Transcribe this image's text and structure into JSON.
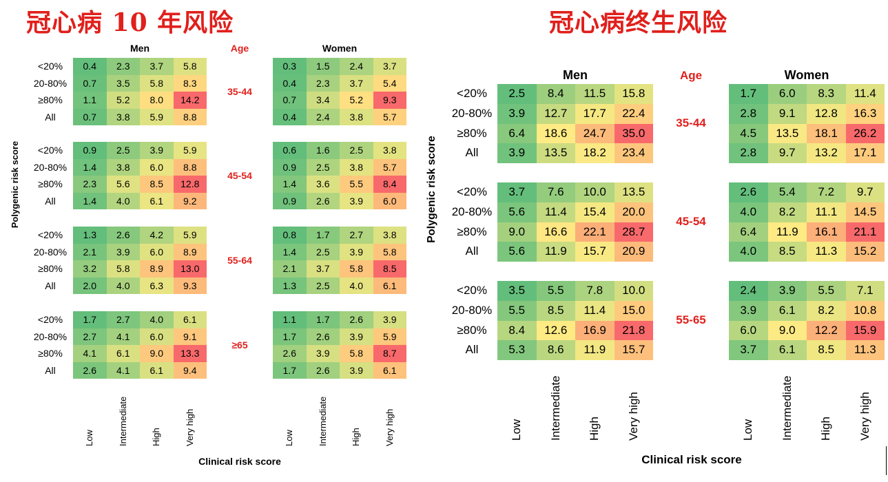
{
  "left": {
    "title": "冠心病 10 年风险",
    "men_label": "Men",
    "women_label": "Women",
    "age_label": "Age",
    "ylabel": "Polygenic risk score",
    "xlabel": "Clinical risk score"
  },
  "right": {
    "title": "冠心病终生风险",
    "men_label": "Men",
    "women_label": "Women",
    "age_label": "Age",
    "ylabel": "Polygenic risk score",
    "xlabel": "Clinical risk score"
  },
  "colors": {
    "green": "#63be7b",
    "yellow": "#ffeb84",
    "red": "#f8696b",
    "accent": "#e0201c"
  },
  "chart_data": [
    {
      "type": "heatmap",
      "title": "冠心病 10 年风险",
      "xlabel": "Clinical risk score",
      "ylabel": "Polygenic risk score",
      "columns": [
        "Low",
        "Intermediate",
        "High",
        "Very high"
      ],
      "rows": [
        "<20%",
        "20-80%",
        "≥80%",
        "All"
      ],
      "groups": [
        {
          "age": "35-44",
          "men": [
            [
              0.4,
              2.3,
              3.7,
              5.8
            ],
            [
              0.7,
              3.5,
              5.8,
              8.3
            ],
            [
              1.1,
              5.2,
              8.0,
              14.2
            ],
            [
              0.7,
              3.8,
              5.9,
              8.8
            ]
          ],
          "women": [
            [
              0.3,
              1.5,
              2.4,
              3.7
            ],
            [
              0.4,
              2.3,
              3.7,
              5.4
            ],
            [
              0.7,
              3.4,
              5.2,
              9.3
            ],
            [
              0.4,
              2.4,
              3.8,
              5.7
            ]
          ]
        },
        {
          "age": "45-54",
          "men": [
            [
              0.9,
              2.5,
              3.9,
              5.9
            ],
            [
              1.4,
              3.8,
              6.0,
              8.8
            ],
            [
              2.3,
              5.6,
              8.5,
              12.8
            ],
            [
              1.4,
              4.0,
              6.1,
              9.2
            ]
          ],
          "women": [
            [
              0.6,
              1.6,
              2.5,
              3.8
            ],
            [
              0.9,
              2.5,
              3.8,
              5.7
            ],
            [
              1.4,
              3.6,
              5.5,
              8.4
            ],
            [
              0.9,
              2.6,
              3.9,
              6.0
            ]
          ]
        },
        {
          "age": "55-64",
          "men": [
            [
              1.3,
              2.6,
              4.2,
              5.9
            ],
            [
              2.1,
              3.9,
              6.0,
              8.9
            ],
            [
              3.2,
              5.8,
              8.9,
              13.0
            ],
            [
              2.0,
              4.0,
              6.3,
              9.3
            ]
          ],
          "women": [
            [
              0.8,
              1.7,
              2.7,
              3.8
            ],
            [
              1.4,
              2.5,
              3.9,
              5.8
            ],
            [
              2.1,
              3.7,
              5.8,
              8.5
            ],
            [
              1.3,
              2.5,
              4.0,
              6.1
            ]
          ]
        },
        {
          "age": "≥65",
          "men": [
            [
              1.7,
              2.7,
              4.0,
              6.1
            ],
            [
              2.7,
              4.1,
              6.0,
              9.1
            ],
            [
              4.1,
              6.1,
              9.0,
              13.3
            ],
            [
              2.6,
              4.1,
              6.1,
              9.4
            ]
          ],
          "women": [
            [
              1.1,
              1.7,
              2.6,
              3.9
            ],
            [
              1.7,
              2.6,
              3.9,
              5.9
            ],
            [
              2.6,
              3.9,
              5.8,
              8.7
            ],
            [
              1.7,
              2.6,
              3.9,
              6.1
            ]
          ]
        }
      ]
    },
    {
      "type": "heatmap",
      "title": "冠心病终生风险",
      "xlabel": "Clinical risk score",
      "ylabel": "Polygenic risk score",
      "columns": [
        "Low",
        "Intermediate",
        "High",
        "Very high"
      ],
      "rows": [
        "<20%",
        "20-80%",
        "≥80%",
        "All"
      ],
      "groups": [
        {
          "age": "35-44",
          "men": [
            [
              2.5,
              8.4,
              11.5,
              15.8
            ],
            [
              3.9,
              12.7,
              17.7,
              22.4
            ],
            [
              6.4,
              18.6,
              24.7,
              35.0
            ],
            [
              3.9,
              13.5,
              18.2,
              23.4
            ]
          ],
          "women": [
            [
              1.7,
              6.0,
              8.3,
              11.4
            ],
            [
              2.8,
              9.1,
              12.8,
              16.3
            ],
            [
              4.5,
              13.5,
              18.1,
              26.2
            ],
            [
              2.8,
              9.7,
              13.2,
              17.1
            ]
          ]
        },
        {
          "age": "45-54",
          "men": [
            [
              3.7,
              7.6,
              10.0,
              13.5
            ],
            [
              5.6,
              11.4,
              15.4,
              20.0
            ],
            [
              9.0,
              16.6,
              22.1,
              28.7
            ],
            [
              5.6,
              11.9,
              15.7,
              20.9
            ]
          ],
          "women": [
            [
              2.6,
              5.4,
              7.2,
              9.7
            ],
            [
              4.0,
              8.2,
              11.1,
              14.5
            ],
            [
              6.4,
              11.9,
              16.1,
              21.1
            ],
            [
              4.0,
              8.5,
              11.3,
              15.2
            ]
          ]
        },
        {
          "age": "55-65",
          "men": [
            [
              3.5,
              5.5,
              7.8,
              10.0
            ],
            [
              5.5,
              8.5,
              11.4,
              15.0
            ],
            [
              8.4,
              12.6,
              16.9,
              21.8
            ],
            [
              5.3,
              8.6,
              11.9,
              15.7
            ]
          ],
          "women": [
            [
              2.4,
              3.9,
              5.5,
              7.1
            ],
            [
              3.9,
              6.1,
              8.2,
              10.8
            ],
            [
              6.0,
              9.0,
              12.2,
              15.9
            ],
            [
              3.7,
              6.1,
              8.5,
              11.3
            ]
          ]
        }
      ]
    }
  ]
}
